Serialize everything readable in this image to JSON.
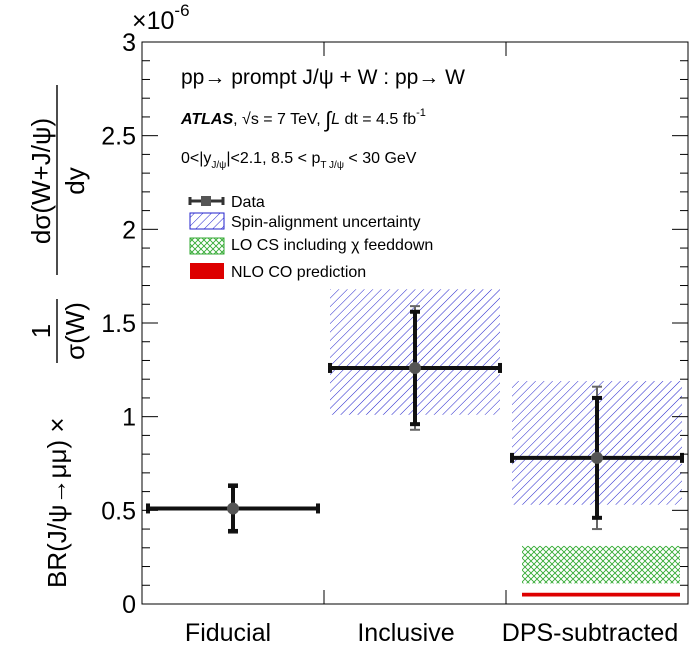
{
  "chart_data": {
    "type": "scatter",
    "categories": [
      "Fiducial",
      "Inclusive",
      "DPS-subtracted"
    ],
    "y_multiplier": "×10",
    "y_multiplier_exp": "-6",
    "ylim": [
      0,
      3
    ],
    "yticks": [
      "0",
      "0.5",
      "1",
      "1.5",
      "2",
      "2.5",
      "3"
    ],
    "ylabel": {
      "main": "BR(J/ψ→μμ) ×",
      "frac1_num": "1",
      "frac1_den": "σ(W)",
      "frac2_num": "dσ(W+J/ψ)",
      "frac2_den": "dy"
    },
    "annotations": {
      "process": "pp→ prompt J/ψ + W : pp→ W",
      "experiment": "ATLAS",
      "energy_sqrt": "√s",
      "energy_value": " = 7 TeV, ",
      "integral": "∫",
      "lumi_L": "L",
      "lumi_text": " dt = 4.5 fb",
      "lumi_exp": "-1",
      "cuts_prefix": "0<|y",
      "cuts_sub1": "J/ψ",
      "cuts_mid": "|<2.1, 8.5 < p",
      "cuts_sub2": "T  J/ψ",
      "cuts_suffix": " < 30 GeV"
    },
    "legend": {
      "placement": "upper-left",
      "entries": [
        {
          "label": "Data",
          "style": "marker"
        },
        {
          "label": "Spin-alignment uncertainty",
          "style": "hatch-blue"
        },
        {
          "label": "LO CS including χ feeddown",
          "style": "crosshatch-green"
        },
        {
          "label": "NLO CO prediction",
          "style": "solid-red"
        }
      ]
    },
    "series": [
      {
        "name": "Data",
        "values": [
          0.51,
          1.26,
          0.78
        ],
        "err_stat_low": [
          0.12,
          0.3,
          0.32
        ],
        "err_stat_high": [
          0.12,
          0.3,
          0.32
        ],
        "err_total_low": [
          0.13,
          0.33,
          0.38
        ],
        "err_total_high": [
          0.13,
          0.33,
          0.38
        ]
      }
    ],
    "spin_alignment_bands": [
      null,
      {
        "low": 1.01,
        "high": 1.68
      },
      {
        "low": 0.53,
        "high": 1.19
      }
    ],
    "lo_cs_band": {
      "category": 2,
      "low": 0.11,
      "high": 0.31
    },
    "nlo_co_band": {
      "category": 2,
      "low": 0.04,
      "high": 0.06
    },
    "colors": {
      "data": "#111111",
      "marker": "#555555",
      "spin": "#2222cc",
      "lo_cs": "#33aa33",
      "nlo_co": "#dd0000"
    }
  }
}
